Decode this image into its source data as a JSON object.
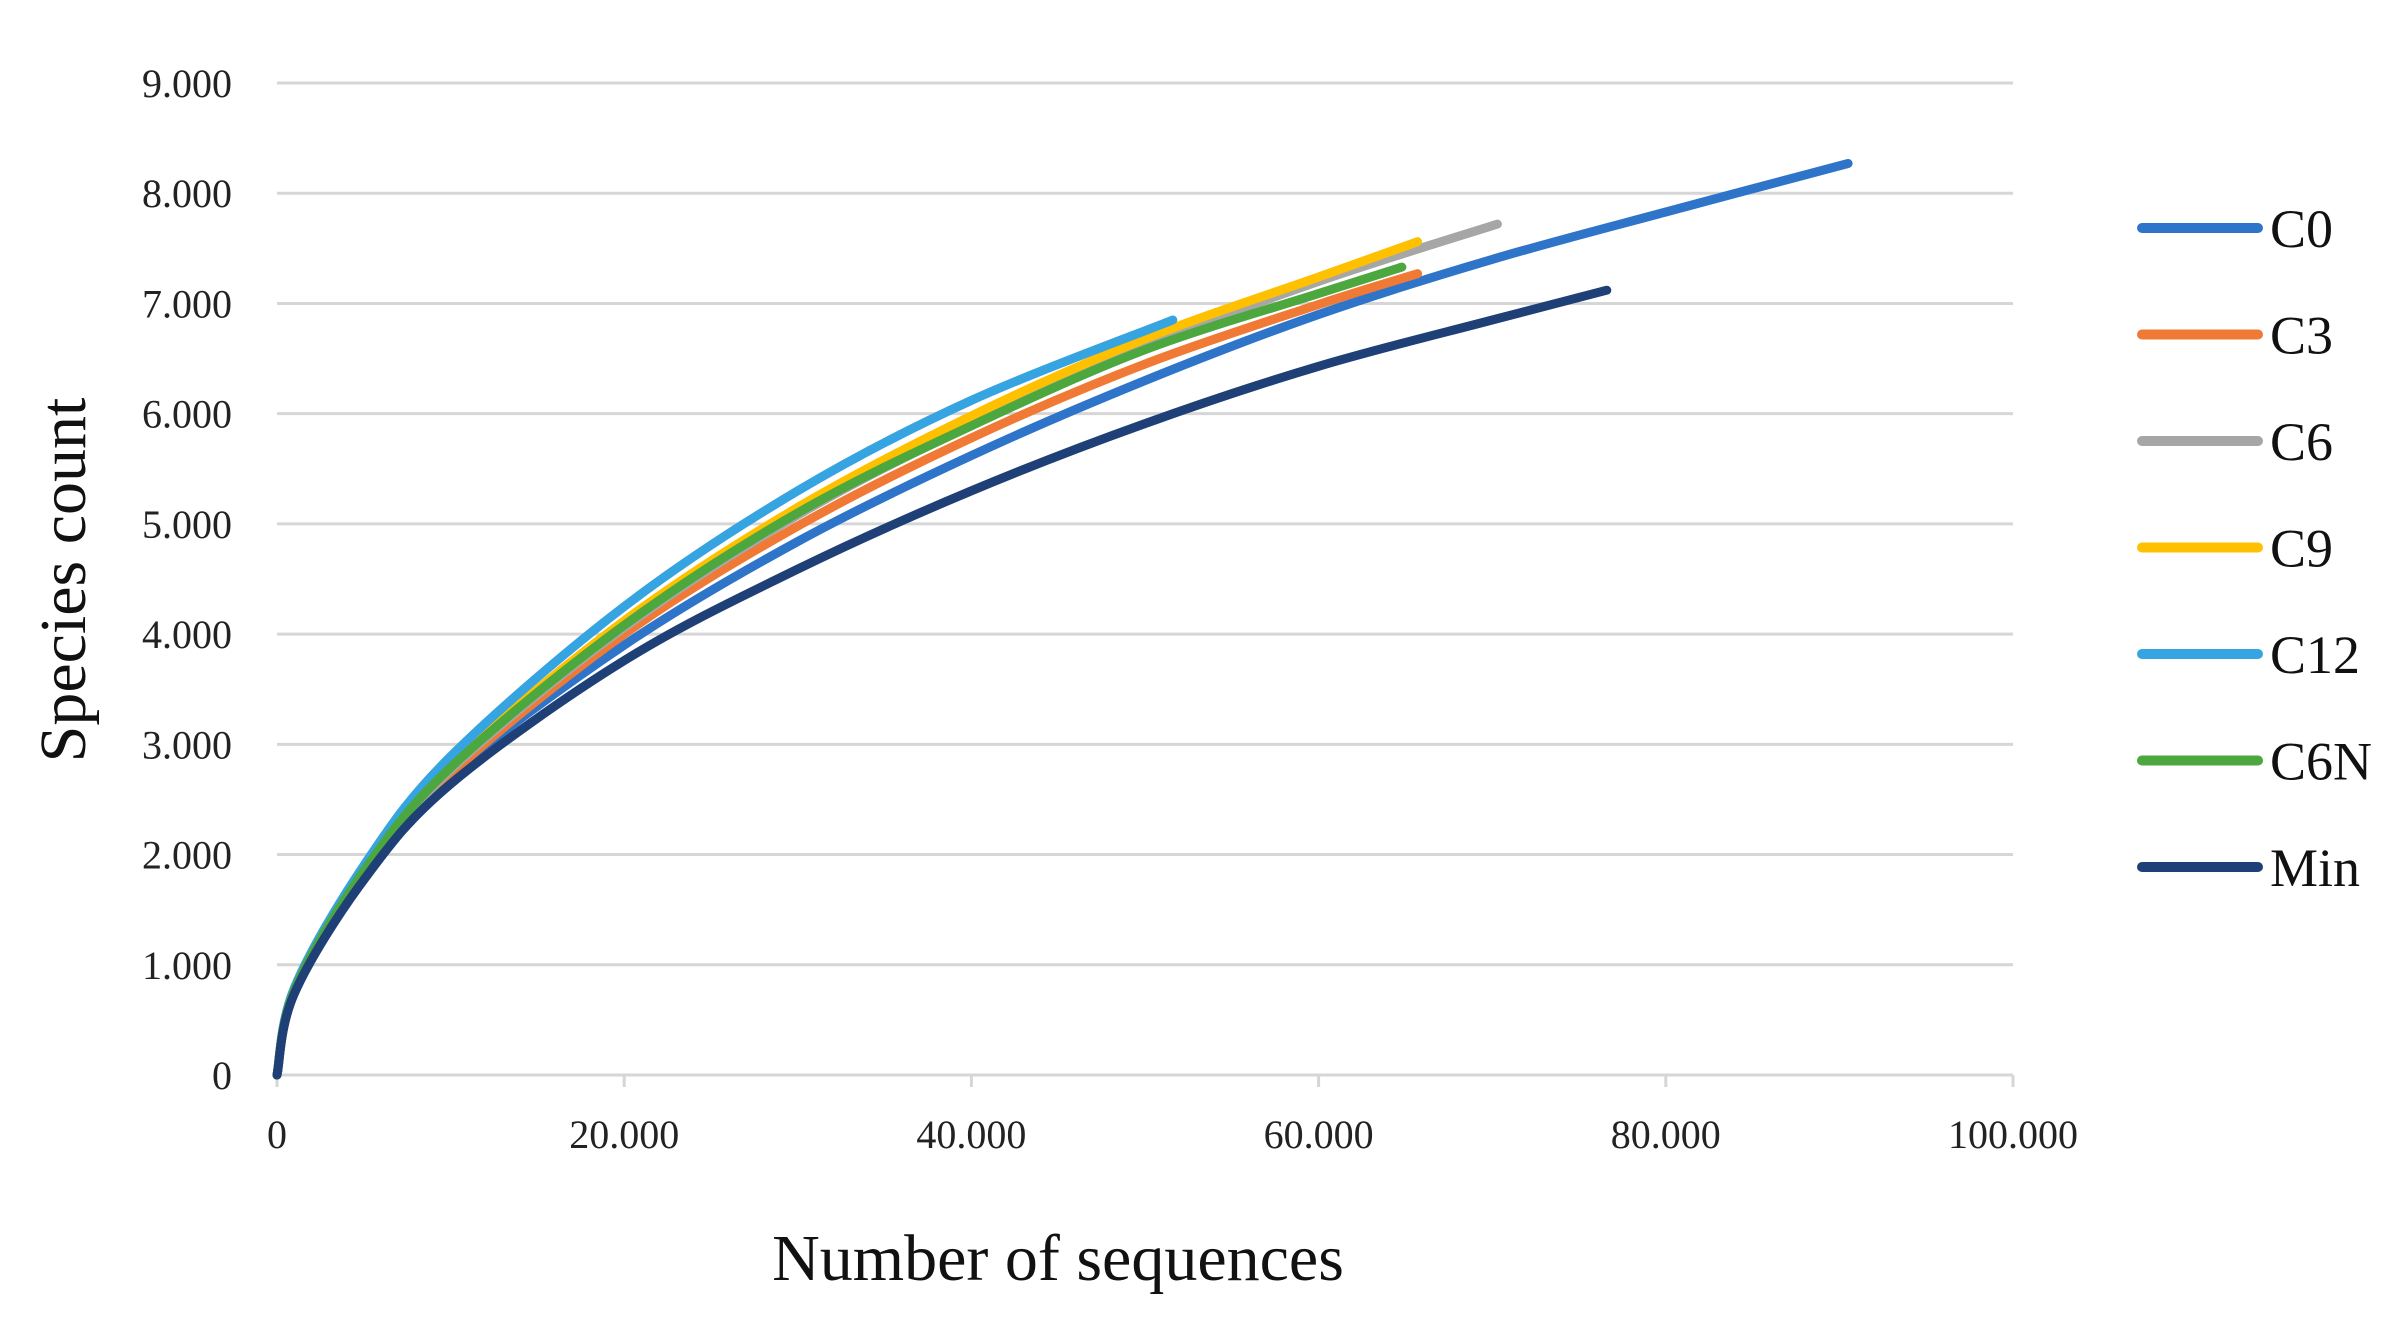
{
  "chart_data": {
    "type": "line",
    "title": "",
    "xlabel": "Number of sequences",
    "ylabel": "Species count",
    "xlim": [
      0,
      100000
    ],
    "ylim": [
      0,
      9000
    ],
    "x_ticks": [
      0,
      20000,
      40000,
      60000,
      80000,
      100000
    ],
    "x_tick_labels": [
      "0",
      "20.000",
      "40.000",
      "60.000",
      "80.000",
      "100.000"
    ],
    "y_ticks": [
      0,
      1000,
      2000,
      3000,
      4000,
      5000,
      6000,
      7000,
      8000,
      9000
    ],
    "y_tick_labels": [
      "0",
      "1.000",
      "2.000",
      "3.000",
      "4.000",
      "5.000",
      "6.000",
      "7.000",
      "8.000",
      "9.000"
    ],
    "grid": "horizontal",
    "legend_position": "right",
    "series": [
      {
        "name": "C0",
        "color": "#2E75C9",
        "x": [
          0,
          1000,
          5000,
          10000,
          20000,
          30000,
          40000,
          50000,
          60000,
          70000,
          80000,
          90500
        ],
        "y": [
          0,
          750,
          1800,
          2720,
          3900,
          4840,
          5620,
          6300,
          6900,
          7400,
          7830,
          8270
        ]
      },
      {
        "name": "C3",
        "color": "#F07A35",
        "x": [
          0,
          1000,
          5000,
          10000,
          20000,
          30000,
          40000,
          50000,
          60000,
          65700
        ],
        "y": [
          0,
          760,
          1820,
          2730,
          4000,
          4980,
          5780,
          6450,
          6990,
          7270
        ]
      },
      {
        "name": "C6",
        "color": "#A6A6A6",
        "x": [
          0,
          1000,
          5000,
          10000,
          20000,
          30000,
          40000,
          50000,
          60000,
          70300
        ],
        "y": [
          0,
          770,
          1840,
          2770,
          4060,
          5080,
          5900,
          6610,
          7200,
          7720
        ]
      },
      {
        "name": "C9",
        "color": "#FFC000",
        "x": [
          0,
          1000,
          5000,
          10000,
          20000,
          30000,
          40000,
          50000,
          60000,
          65700
        ],
        "y": [
          0,
          780,
          1860,
          2810,
          4120,
          5150,
          5980,
          6680,
          7240,
          7560
        ]
      },
      {
        "name": "C12",
        "color": "#35A4E0",
        "x": [
          0,
          1000,
          5000,
          10000,
          20000,
          30000,
          40000,
          51600
        ],
        "y": [
          0,
          790,
          1900,
          2890,
          4250,
          5300,
          6120,
          6850
        ]
      },
      {
        "name": "C6N",
        "color": "#4CA73F",
        "x": [
          0,
          1000,
          5000,
          10000,
          20000,
          30000,
          40000,
          50000,
          60000,
          64800
        ],
        "y": [
          0,
          770,
          1850,
          2790,
          4080,
          5100,
          5890,
          6580,
          7090,
          7330
        ]
      },
      {
        "name": "Min",
        "color": "#1F3F77",
        "x": [
          0,
          1000,
          5000,
          10000,
          20000,
          30000,
          40000,
          50000,
          60000,
          70000,
          76600
        ],
        "y": [
          0,
          740,
          1770,
          2640,
          3760,
          4590,
          5300,
          5910,
          6430,
          6850,
          7120
        ]
      }
    ]
  }
}
